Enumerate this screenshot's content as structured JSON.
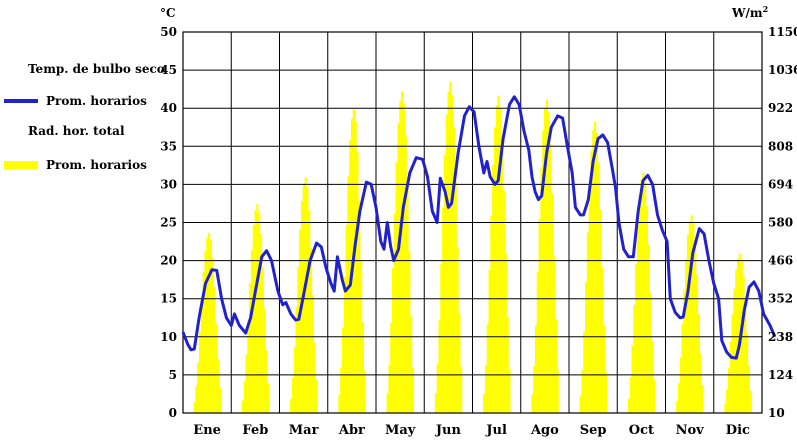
{
  "legend": {
    "temp_title": "Temp. de bulbo seco",
    "temp_series_label": "Prom. horarios",
    "rad_title": "Rad. hor. total",
    "rad_series_label": "Prom. horarios"
  },
  "units": {
    "left": "°C",
    "right_base": "W/m",
    "right_sup": "2"
  },
  "colors": {
    "temperature": "#2222cc",
    "radiation": "#ffff00",
    "grid": "#000000"
  },
  "chart_data": {
    "type": "line+bar",
    "categories": [
      "Ene",
      "Feb",
      "Mar",
      "Abr",
      "May",
      "Jun",
      "Jul",
      "Ago",
      "Sep",
      "Oct",
      "Nov",
      "Dic"
    ],
    "y_left": {
      "label": "°C",
      "ticks": [
        0,
        5,
        10,
        15,
        20,
        25,
        30,
        35,
        40,
        45,
        50
      ],
      "range": [
        0,
        50
      ]
    },
    "y_right": {
      "label": "W/m2",
      "ticks": [
        10,
        124,
        238,
        352,
        466,
        580,
        694,
        808,
        922,
        1036,
        1150
      ],
      "range": [
        10,
        1150
      ]
    },
    "grid": true,
    "radiation_series": {
      "name": "Prom. horarios",
      "peak_per_month": [
        549,
        635,
        715,
        918,
        973,
        1001,
        960,
        948,
        882,
        729,
        602,
        487
      ]
    },
    "temperature_series": {
      "name": "Prom. horarios",
      "points": [
        [
          0.0,
          10.6
        ],
        [
          0.15,
          9.0
        ],
        [
          0.25,
          8.3
        ],
        [
          0.35,
          8.4
        ],
        [
          0.5,
          12.5
        ],
        [
          0.7,
          17
        ],
        [
          0.9,
          18.8
        ],
        [
          1.05,
          18.7
        ],
        [
          1.2,
          15
        ],
        [
          1.35,
          12.5
        ],
        [
          1.5,
          11.5
        ],
        [
          1.6,
          13
        ],
        [
          1.75,
          11.5
        ],
        [
          1.95,
          10.5
        ],
        [
          2.1,
          12.5
        ],
        [
          2.25,
          16
        ],
        [
          2.45,
          20.5
        ],
        [
          2.6,
          21.3
        ],
        [
          2.75,
          20
        ],
        [
          2.95,
          16
        ],
        [
          3.1,
          14.2
        ],
        [
          3.2,
          14.5
        ],
        [
          3.35,
          13
        ],
        [
          3.5,
          12.2
        ],
        [
          3.6,
          12.3
        ],
        [
          3.75,
          15.5
        ],
        [
          3.95,
          20
        ],
        [
          4.15,
          22.3
        ],
        [
          4.3,
          21.8
        ],
        [
          4.45,
          19
        ],
        [
          4.6,
          17
        ],
        [
          4.7,
          16
        ],
        [
          4.8,
          20.5
        ],
        [
          4.95,
          17.5
        ],
        [
          5.05,
          16
        ],
        [
          5.2,
          16.8
        ],
        [
          5.35,
          22
        ],
        [
          5.5,
          26.5
        ],
        [
          5.7,
          30.3
        ],
        [
          5.85,
          30
        ],
        [
          6.0,
          27
        ],
        [
          6.15,
          22.5
        ],
        [
          6.25,
          21.5
        ],
        [
          6.35,
          25
        ],
        [
          6.45,
          22
        ],
        [
          6.55,
          20
        ],
        [
          6.7,
          21.5
        ],
        [
          6.85,
          27
        ],
        [
          7.05,
          31.5
        ],
        [
          7.25,
          33.5
        ],
        [
          7.45,
          33.3
        ],
        [
          7.6,
          31
        ],
        [
          7.75,
          26.5
        ],
        [
          7.9,
          25
        ],
        [
          8.0,
          30.8
        ],
        [
          8.15,
          29
        ],
        [
          8.25,
          27
        ],
        [
          8.35,
          27.5
        ],
        [
          8.55,
          34
        ],
        [
          8.75,
          39
        ],
        [
          8.9,
          40.2
        ],
        [
          9.05,
          39.5
        ],
        [
          9.2,
          35
        ],
        [
          9.35,
          31.5
        ],
        [
          9.45,
          33
        ],
        [
          9.55,
          31
        ],
        [
          9.7,
          30
        ],
        [
          9.8,
          30.5
        ],
        [
          9.95,
          36
        ],
        [
          10.15,
          40.5
        ],
        [
          10.3,
          41.5
        ],
        [
          10.45,
          40.5
        ],
        [
          10.6,
          37
        ],
        [
          10.75,
          34.5
        ],
        [
          10.85,
          31
        ],
        [
          10.95,
          29
        ],
        [
          11.05,
          28
        ],
        [
          11.15,
          28.5
        ],
        [
          11.3,
          34
        ],
        [
          11.45,
          37.5
        ],
        [
          11.65,
          39
        ],
        [
          11.8,
          38.7
        ],
        [
          11.95,
          35
        ],
        [
          12.1,
          31.5
        ],
        [
          12.2,
          27
        ],
        [
          12.35,
          26
        ],
        [
          12.45,
          26
        ],
        [
          12.6,
          28
        ],
        [
          12.75,
          33
        ],
        [
          12.9,
          36
        ],
        [
          13.05,
          36.5
        ],
        [
          13.2,
          35.5
        ],
        [
          13.35,
          32
        ],
        [
          13.45,
          29.5
        ],
        [
          13.55,
          25
        ],
        [
          13.7,
          21.5
        ],
        [
          13.85,
          20.5
        ],
        [
          14.0,
          20.5
        ],
        [
          14.15,
          26.5
        ],
        [
          14.3,
          30.5
        ],
        [
          14.45,
          31.2
        ],
        [
          14.6,
          30
        ],
        [
          14.75,
          26
        ],
        [
          14.9,
          24
        ],
        [
          15.05,
          22.5
        ],
        [
          15.15,
          15
        ],
        [
          15.3,
          13.2
        ],
        [
          15.45,
          12.5
        ],
        [
          15.55,
          12.6
        ],
        [
          15.7,
          16
        ],
        [
          15.85,
          21
        ],
        [
          16.05,
          24.2
        ],
        [
          16.2,
          23.5
        ],
        [
          16.35,
          20
        ],
        [
          16.5,
          17
        ],
        [
          16.65,
          15
        ],
        [
          16.75,
          9.5
        ],
        [
          16.9,
          8.0
        ],
        [
          17.05,
          7.3
        ],
        [
          17.2,
          7.2
        ],
        [
          17.3,
          9
        ],
        [
          17.45,
          13.5
        ],
        [
          17.6,
          16.5
        ],
        [
          17.75,
          17.2
        ],
        [
          17.9,
          16
        ],
        [
          18.05,
          13
        ],
        [
          18.25,
          11.5
        ],
        [
          18.4,
          10.0
        ]
      ]
    }
  }
}
